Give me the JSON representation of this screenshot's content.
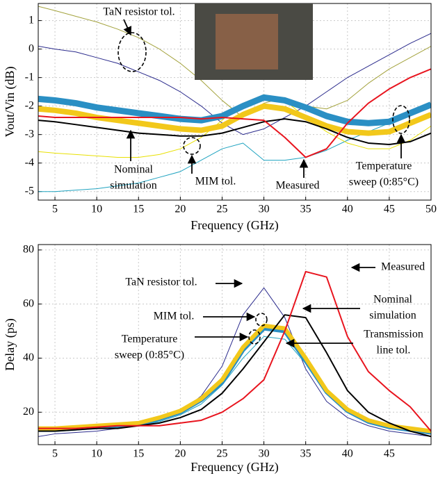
{
  "chart_data": [
    {
      "type": "line",
      "ylabel": "Vout/Vin (dB)",
      "xlabel": "Frequency (GHz)",
      "xlim": [
        3,
        50
      ],
      "ylim": [
        -5.3,
        1.6
      ],
      "xticks": [
        5,
        10,
        15,
        20,
        25,
        30,
        35,
        40,
        45,
        50
      ],
      "yticks": [
        -5,
        -4,
        -3,
        -2,
        -1,
        0,
        1
      ],
      "grid": true,
      "x": [
        3,
        5,
        7.5,
        10,
        12.5,
        15,
        17.5,
        20,
        22.5,
        25,
        27.5,
        30,
        32.5,
        35,
        37.5,
        40,
        42.5,
        45,
        47.5,
        50
      ],
      "series": [
        {
          "color": "#a3a23c",
          "width": 1,
          "values": [
            1.5,
            1.35,
            1.15,
            0.95,
            0.7,
            0.4,
            0.0,
            -0.5,
            -1.1,
            -1.8,
            -2.4,
            -1.9,
            -1.7,
            -2.0,
            -2.1,
            -1.8,
            -1.2,
            -0.7,
            -0.3,
            0.1
          ]
        },
        {
          "color": "#2a2a8c",
          "width": 1,
          "values": [
            0.1,
            0.0,
            -0.1,
            -0.3,
            -0.5,
            -0.8,
            -1.1,
            -1.5,
            -2.0,
            -2.6,
            -3.0,
            -2.8,
            -2.4,
            -2.0,
            -1.5,
            -1.0,
            -0.6,
            -0.2,
            0.2,
            0.55
          ]
        },
        {
          "color": "#1fa3c0",
          "width": 1,
          "values": [
            -5.0,
            -5.0,
            -4.95,
            -4.9,
            -4.8,
            -4.7,
            -4.5,
            -4.3,
            -3.9,
            -3.5,
            -3.3,
            -3.9,
            -3.9,
            -3.8,
            -3.55,
            -3.2,
            -2.9,
            -2.6,
            -2.3,
            -1.9
          ]
        },
        {
          "color": "#e8e000",
          "width": 1,
          "values": [
            -3.6,
            -3.65,
            -3.7,
            -3.75,
            -3.8,
            -3.8,
            -3.7,
            -3.5,
            -3.1,
            -2.5,
            -1.9,
            -1.6,
            -1.8,
            -2.4,
            -2.9,
            -3.3,
            -3.5,
            -3.5,
            -3.2,
            -2.7
          ]
        },
        {
          "color": "#2a8fc4",
          "width": 9,
          "values": [
            -1.75,
            -1.8,
            -1.9,
            -2.05,
            -2.15,
            -2.25,
            -2.35,
            -2.45,
            -2.5,
            -2.35,
            -2.0,
            -1.7,
            -1.8,
            -2.05,
            -2.35,
            -2.55,
            -2.6,
            -2.55,
            -2.25,
            -1.95
          ]
        },
        {
          "color": "#f2c81b",
          "width": 8,
          "values": [
            -2.1,
            -2.15,
            -2.25,
            -2.4,
            -2.5,
            -2.6,
            -2.7,
            -2.8,
            -2.85,
            -2.7,
            -2.3,
            -2.0,
            -2.1,
            -2.4,
            -2.7,
            -2.9,
            -2.95,
            -2.9,
            -2.6,
            -2.3
          ]
        },
        {
          "color": "#000000",
          "width": 2,
          "values": [
            -2.5,
            -2.55,
            -2.65,
            -2.75,
            -2.85,
            -2.95,
            -3.0,
            -3.05,
            -3.05,
            -2.95,
            -2.75,
            -2.55,
            -2.45,
            -2.55,
            -2.8,
            -3.1,
            -3.3,
            -3.35,
            -3.25,
            -2.95
          ]
        },
        {
          "color": "#e8141e",
          "width": 2,
          "values": [
            -2.35,
            -2.4,
            -2.4,
            -2.4,
            -2.4,
            -2.4,
            -2.4,
            -2.4,
            -2.45,
            -2.4,
            -2.45,
            -2.5,
            -3.1,
            -3.8,
            -3.5,
            -2.6,
            -1.9,
            -1.4,
            -1.0,
            -0.7
          ]
        }
      ],
      "annotations": [
        [
          "TaN resistor tol."
        ],
        [
          "Nominal",
          "simulation"
        ],
        [
          "MIM tol."
        ],
        [
          "Measured"
        ],
        [
          "Temperature",
          "sweep (0:85°C)"
        ]
      ]
    },
    {
      "type": "line",
      "ylabel": "Delay (ps)",
      "xlabel": "Frequency (GHz)",
      "xlim": [
        3,
        50
      ],
      "ylim": [
        8,
        82
      ],
      "xticks": [
        5,
        10,
        15,
        20,
        25,
        30,
        35,
        40,
        45
      ],
      "yticks": [
        20,
        40,
        60,
        80
      ],
      "grid": true,
      "x": [
        3,
        5,
        7.5,
        10,
        12.5,
        15,
        17.5,
        20,
        22.5,
        25,
        27.5,
        30,
        32.5,
        35,
        37.5,
        40,
        42.5,
        45,
        47.5,
        50
      ],
      "series": [
        {
          "color": "#2a2a8c",
          "width": 1,
          "values": [
            11,
            12,
            12.5,
            13,
            14,
            15,
            17,
            20,
            26,
            37,
            56,
            66,
            55,
            36,
            24,
            18,
            15,
            13,
            12,
            11
          ]
        },
        {
          "color": "#1fa3c0",
          "width": 1,
          "values": [
            13,
            13,
            13.5,
            14,
            14.5,
            15,
            16.5,
            19,
            23,
            30,
            40,
            48,
            47,
            38,
            27,
            20,
            16,
            14,
            13,
            12
          ]
        },
        {
          "color": "#2a8fc4",
          "width": 6,
          "values": [
            13.5,
            13.5,
            14,
            14.5,
            15,
            15.5,
            17.5,
            20,
            24.5,
            31,
            43,
            51,
            50,
            39,
            27.5,
            20.5,
            16.5,
            14.5,
            13.5,
            12.5
          ]
        },
        {
          "color": "#f2c81b",
          "width": 6,
          "values": [
            14,
            14,
            14.5,
            15,
            15.5,
            16,
            18,
            20.5,
            25,
            32,
            44,
            52,
            51,
            40,
            28,
            21,
            17,
            15,
            14,
            13
          ]
        },
        {
          "color": "#000000",
          "width": 2,
          "values": [
            13,
            13,
            13.5,
            14,
            14,
            15,
            16,
            18,
            21,
            27,
            36,
            46,
            56,
            55,
            42,
            28,
            20,
            16,
            13,
            11
          ]
        },
        {
          "color": "#e8141e",
          "width": 2,
          "values": [
            14,
            14,
            14,
            14.5,
            15,
            15,
            15,
            16,
            17,
            20,
            25,
            32,
            50,
            72,
            70,
            48,
            35,
            28,
            22,
            13
          ]
        }
      ],
      "annotations": [
        [
          "Measured"
        ],
        [
          "TaN resistor tol."
        ],
        [
          "Nominal",
          "simulation"
        ],
        [
          "MIM tol."
        ],
        [
          "Transmission",
          "line tol."
        ],
        [
          "Temperature",
          "sweep (0:85°C)"
        ]
      ]
    }
  ]
}
